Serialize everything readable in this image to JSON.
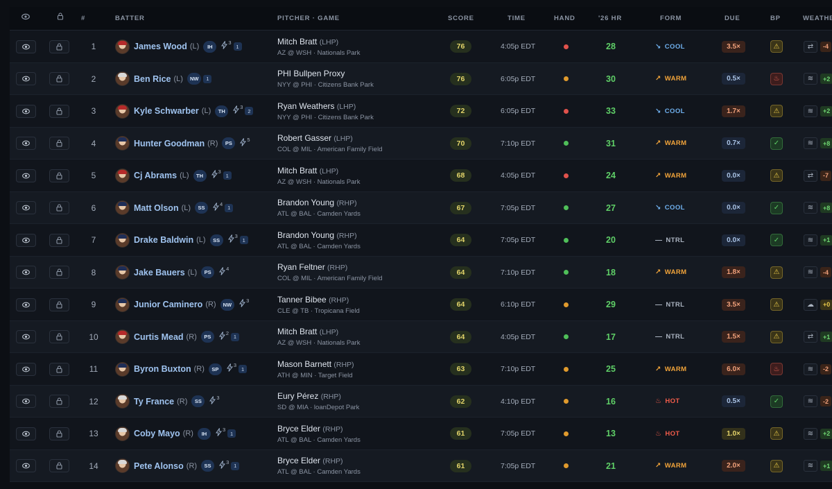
{
  "headers": {
    "watch": "",
    "lock": "",
    "rank": "#",
    "batter": "BATTER",
    "pitcher_game": "PITCHER · GAME",
    "score": "SCORE",
    "time": "TIME",
    "hand": "HAND",
    "hr": "'26 HR",
    "form": "FORM",
    "due": "DUE",
    "bp": "BP",
    "weather": "WEATHE"
  },
  "colors": {
    "hand_red": "#e0524c",
    "hand_orange": "#e09a2d",
    "hand_green": "#4fbf59",
    "cool": "#6fb0ee",
    "warm": "#f2a43a",
    "hot": "#f25c4a",
    "ntrl": "#aab3c0"
  },
  "rows": [
    {
      "rank": "1",
      "name": "James Wood",
      "hand": "(L)",
      "badge": "IH",
      "bolt": "3",
      "num": "1",
      "pitcher": "Mitch Bratt",
      "phand": "(LHP)",
      "game": "AZ @ WSH · Nationals Park",
      "score": "76",
      "time": "4:05p EDT",
      "dot": "red",
      "hr": "28",
      "form": "COOL",
      "due": "3.5×",
      "due_level": "high",
      "bp": "warn",
      "wx_icon": "swap-icon",
      "wx_val": "-4",
      "wx_level": "neg",
      "cap": "red"
    },
    {
      "rank": "2",
      "name": "Ben Rice",
      "hand": "(L)",
      "badge": "NW",
      "bolt": "",
      "num": "1",
      "pitcher": "PHI Bullpen Proxy",
      "phand": "",
      "game": "NYY @ PHI · Citizens Bank Park",
      "score": "76",
      "time": "6:05p EDT",
      "dot": "orange",
      "hr": "30",
      "form": "WARM",
      "due": "0.5×",
      "due_level": "low",
      "bp": "fire",
      "wx_icon": "wind-icon",
      "wx_val": "+2",
      "wx_level": "pos",
      "cap": "white"
    },
    {
      "rank": "3",
      "name": "Kyle Schwarber",
      "hand": "(L)",
      "badge": "TH",
      "bolt": "3",
      "num": "2",
      "pitcher": "Ryan Weathers",
      "phand": "(LHP)",
      "game": "NYY @ PHI · Citizens Bank Park",
      "score": "72",
      "time": "6:05p EDT",
      "dot": "red",
      "hr": "33",
      "form": "COOL",
      "due": "1.7×",
      "due_level": "high",
      "bp": "warn",
      "wx_icon": "wind-icon",
      "wx_val": "+2",
      "wx_level": "pos",
      "cap": "red"
    },
    {
      "rank": "4",
      "name": "Hunter Goodman",
      "hand": "(R)",
      "badge": "PS",
      "bolt": "5",
      "num": "",
      "pitcher": "Robert Gasser",
      "phand": "(LHP)",
      "game": "COL @ MIL · American Family Field",
      "score": "70",
      "time": "7:10p EDT",
      "dot": "green",
      "hr": "31",
      "form": "WARM",
      "due": "0.7×",
      "due_level": "low",
      "bp": "ok",
      "wx_icon": "wind-icon",
      "wx_val": "+8",
      "wx_level": "pos",
      "cap": "navy"
    },
    {
      "rank": "5",
      "name": "Cj Abrams",
      "hand": "(L)",
      "badge": "TH",
      "bolt": "3",
      "num": "1",
      "pitcher": "Mitch Bratt",
      "phand": "(LHP)",
      "game": "AZ @ WSH · Nationals Park",
      "score": "68",
      "time": "4:05p EDT",
      "dot": "red",
      "hr": "24",
      "form": "WARM",
      "due": "0.0×",
      "due_level": "low",
      "bp": "warn",
      "wx_icon": "swap-icon",
      "wx_val": "-7",
      "wx_level": "neg",
      "cap": "red"
    },
    {
      "rank": "6",
      "name": "Matt Olson",
      "hand": "(L)",
      "badge": "SS",
      "bolt": "4",
      "num": "1",
      "pitcher": "Brandon Young",
      "phand": "(RHP)",
      "game": "ATL @ BAL · Camden Yards",
      "score": "67",
      "time": "7:05p EDT",
      "dot": "green",
      "hr": "27",
      "form": "COOL",
      "due": "0.0×",
      "due_level": "low",
      "bp": "ok",
      "wx_icon": "wind-icon",
      "wx_val": "+8",
      "wx_level": "pos",
      "cap": "navy"
    },
    {
      "rank": "7",
      "name": "Drake Baldwin",
      "hand": "(L)",
      "badge": "SS",
      "bolt": "3",
      "num": "1",
      "pitcher": "Brandon Young",
      "phand": "(RHP)",
      "game": "ATL @ BAL · Camden Yards",
      "score": "64",
      "time": "7:05p EDT",
      "dot": "green",
      "hr": "20",
      "form": "NTRL",
      "due": "0.0×",
      "due_level": "low",
      "bp": "ok",
      "wx_icon": "wind-icon",
      "wx_val": "+1",
      "wx_level": "pos",
      "cap": "navy"
    },
    {
      "rank": "8",
      "name": "Jake Bauers",
      "hand": "(L)",
      "badge": "PS",
      "bolt": "4",
      "num": "",
      "pitcher": "Ryan Feltner",
      "phand": "(RHP)",
      "game": "COL @ MIL · American Family Field",
      "score": "64",
      "time": "7:10p EDT",
      "dot": "green",
      "hr": "18",
      "form": "WARM",
      "due": "1.8×",
      "due_level": "high",
      "bp": "warn",
      "wx_icon": "wind-icon",
      "wx_val": "-4",
      "wx_level": "neg",
      "cap": "navy"
    },
    {
      "rank": "9",
      "name": "Junior Caminero",
      "hand": "(R)",
      "badge": "NW",
      "bolt": "3",
      "num": "",
      "pitcher": "Tanner Bibee",
      "phand": "(RHP)",
      "game": "CLE @ TB · Tropicana Field",
      "score": "64",
      "time": "6:10p EDT",
      "dot": "orange",
      "hr": "29",
      "form": "NTRL",
      "due": "3.5×",
      "due_level": "high",
      "bp": "warn",
      "wx_icon": "cloud-icon",
      "wx_val": "+0",
      "wx_level": "zero",
      "cap": "navy"
    },
    {
      "rank": "10",
      "name": "Curtis Mead",
      "hand": "(R)",
      "badge": "PS",
      "bolt": "2",
      "num": "1",
      "pitcher": "Mitch Bratt",
      "phand": "(LHP)",
      "game": "AZ @ WSH · Nationals Park",
      "score": "64",
      "time": "4:05p EDT",
      "dot": "green",
      "hr": "17",
      "form": "NTRL",
      "due": "1.5×",
      "due_level": "high",
      "bp": "warn",
      "wx_icon": "swap-icon",
      "wx_val": "+1",
      "wx_level": "pos",
      "cap": "red"
    },
    {
      "rank": "11",
      "name": "Byron Buxton",
      "hand": "(R)",
      "badge": "SP",
      "bolt": "3",
      "num": "1",
      "pitcher": "Mason Barnett",
      "phand": "(RHP)",
      "game": "ATH @ MIN · Target Field",
      "score": "63",
      "time": "7:10p EDT",
      "dot": "orange",
      "hr": "25",
      "form": "WARM",
      "due": "6.0×",
      "due_level": "high",
      "bp": "fire",
      "wx_icon": "wind-icon",
      "wx_val": "-2",
      "wx_level": "neg",
      "cap": "navy"
    },
    {
      "rank": "12",
      "name": "Ty France",
      "hand": "(R)",
      "badge": "SS",
      "bolt": "3",
      "num": "",
      "pitcher": "Eury Pérez",
      "phand": "(RHP)",
      "game": "SD @ MIA · loanDepot Park",
      "score": "62",
      "time": "4:10p EDT",
      "dot": "orange",
      "hr": "16",
      "form": "HOT",
      "due": "0.5×",
      "due_level": "low",
      "bp": "ok",
      "wx_icon": "wind-icon",
      "wx_val": "-2",
      "wx_level": "neg",
      "cap": "white"
    },
    {
      "rank": "13",
      "name": "Coby Mayo",
      "hand": "(R)",
      "badge": "IH",
      "bolt": "3",
      "num": "1",
      "pitcher": "Bryce Elder",
      "phand": "(RHP)",
      "game": "ATL @ BAL · Camden Yards",
      "score": "61",
      "time": "7:05p EDT",
      "dot": "orange",
      "hr": "13",
      "form": "HOT",
      "due": "1.0×",
      "due_level": "mid",
      "bp": "warn",
      "wx_icon": "wind-icon",
      "wx_val": "+2",
      "wx_level": "pos",
      "cap": "white"
    },
    {
      "rank": "14",
      "name": "Pete Alonso",
      "hand": "(R)",
      "badge": "SS",
      "bolt": "3",
      "num": "1",
      "pitcher": "Bryce Elder",
      "phand": "(RHP)",
      "game": "ATL @ BAL · Camden Yards",
      "score": "61",
      "time": "7:05p EDT",
      "dot": "orange",
      "hr": "21",
      "form": "WARM",
      "due": "2.0×",
      "due_level": "high",
      "bp": "warn",
      "wx_icon": "wind-icon",
      "wx_val": "+1",
      "wx_level": "pos",
      "cap": "white"
    }
  ]
}
